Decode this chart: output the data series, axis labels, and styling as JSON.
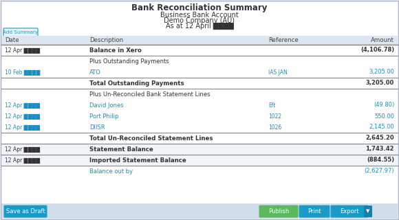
{
  "title": "Bank Reconciliation Summary",
  "subtitle1": "Business Bank Account",
  "subtitle2": "Demo Company (AU)",
  "subtitle3": "As at 12 April ████",
  "bg_color": "#ffffff",
  "border_color": "#b0b8c8",
  "col_header_bg": "#dce6f0",
  "col_header_text": "#444444",
  "link_color": "#1a8fbf",
  "dark_text": "#333333",
  "footer_bg": "#cfdcea",
  "btn_draft_color": "#1a9bc7",
  "btn_publish_color": "#5cb85c",
  "btn_other_color": "#1a9bc7",
  "add_summary_border": "#1a9bc7",
  "add_summary_text": "#1a9bc7",
  "line_color": "#aaaaaa",
  "thick_line_color": "#888888",
  "rows": [
    {
      "date": "12 Apr ████",
      "description": "Balance in Xero",
      "reference": "",
      "amount": "(4,106.78)",
      "bold": true,
      "link": false,
      "section": false,
      "bg": "#ffffff",
      "amount_color": "#333333",
      "sep_above": true,
      "sep_below": true
    },
    {
      "date": "",
      "description": "Plus Outstanding Payments",
      "reference": "",
      "amount": "",
      "bold": false,
      "link": false,
      "section": true,
      "bg": "#ffffff",
      "amount_color": "#333333",
      "sep_above": false,
      "sep_below": false
    },
    {
      "date": "10 Feb ████",
      "description": "ATO",
      "reference": "IAS JAN",
      "amount": "3,205.00",
      "bold": false,
      "link": true,
      "section": false,
      "bg": "#ffffff",
      "amount_color": "#1a8fbf",
      "sep_above": false,
      "sep_below": false
    },
    {
      "date": "",
      "description": "Total Outstanding Payments",
      "reference": "",
      "amount": "3,205.00",
      "bold": true,
      "link": false,
      "section": false,
      "bg": "#ffffff",
      "amount_color": "#333333",
      "sep_above": true,
      "sep_below": true
    },
    {
      "date": "",
      "description": "Plus Un-Reconciled Bank Statement Lines",
      "reference": "",
      "amount": "",
      "bold": false,
      "link": false,
      "section": true,
      "bg": "#ffffff",
      "amount_color": "#333333",
      "sep_above": false,
      "sep_below": false
    },
    {
      "date": "12 Apr ████",
      "description": "David Jones",
      "reference": "Eft",
      "amount": "(49.80)",
      "bold": false,
      "link": true,
      "section": false,
      "bg": "#ffffff",
      "amount_color": "#1a8fbf",
      "sep_above": false,
      "sep_below": false
    },
    {
      "date": "12 Apr ████",
      "description": "Port Philip",
      "reference": "1022",
      "amount": "550.00",
      "bold": false,
      "link": true,
      "section": false,
      "bg": "#ffffff",
      "amount_color": "#1a8fbf",
      "sep_above": false,
      "sep_below": false
    },
    {
      "date": "12 Apr ████",
      "description": "DIISR",
      "reference": "1026",
      "amount": "2,145.00",
      "bold": false,
      "link": true,
      "section": false,
      "bg": "#ffffff",
      "amount_color": "#1a8fbf",
      "sep_above": false,
      "sep_below": false
    },
    {
      "date": "",
      "description": "Total Un-Reconciled Statement Lines",
      "reference": "",
      "amount": "2,645.20",
      "bold": true,
      "link": false,
      "section": false,
      "bg": "#ffffff",
      "amount_color": "#333333",
      "sep_above": true,
      "sep_below": true
    },
    {
      "date": "12 Apr ████",
      "description": "Statement Balance",
      "reference": "",
      "amount": "1,743.42",
      "bold": true,
      "link": false,
      "section": false,
      "bg": "#f0f4f8",
      "amount_color": "#333333",
      "sep_above": true,
      "sep_below": true
    },
    {
      "date": "12 Apr ████",
      "description": "Imported Statement Balance",
      "reference": "",
      "amount": "(884.55)",
      "bold": true,
      "link": false,
      "section": false,
      "bg": "#f0f4f8",
      "amount_color": "#333333",
      "sep_above": true,
      "sep_below": true
    },
    {
      "date": "",
      "description": "Balance out by",
      "reference": "",
      "amount": "(2,627.97)",
      "bold": false,
      "link": true,
      "section": false,
      "bg": "#ffffff",
      "amount_color": "#1a8fbf",
      "sep_above": false,
      "sep_below": false
    }
  ]
}
